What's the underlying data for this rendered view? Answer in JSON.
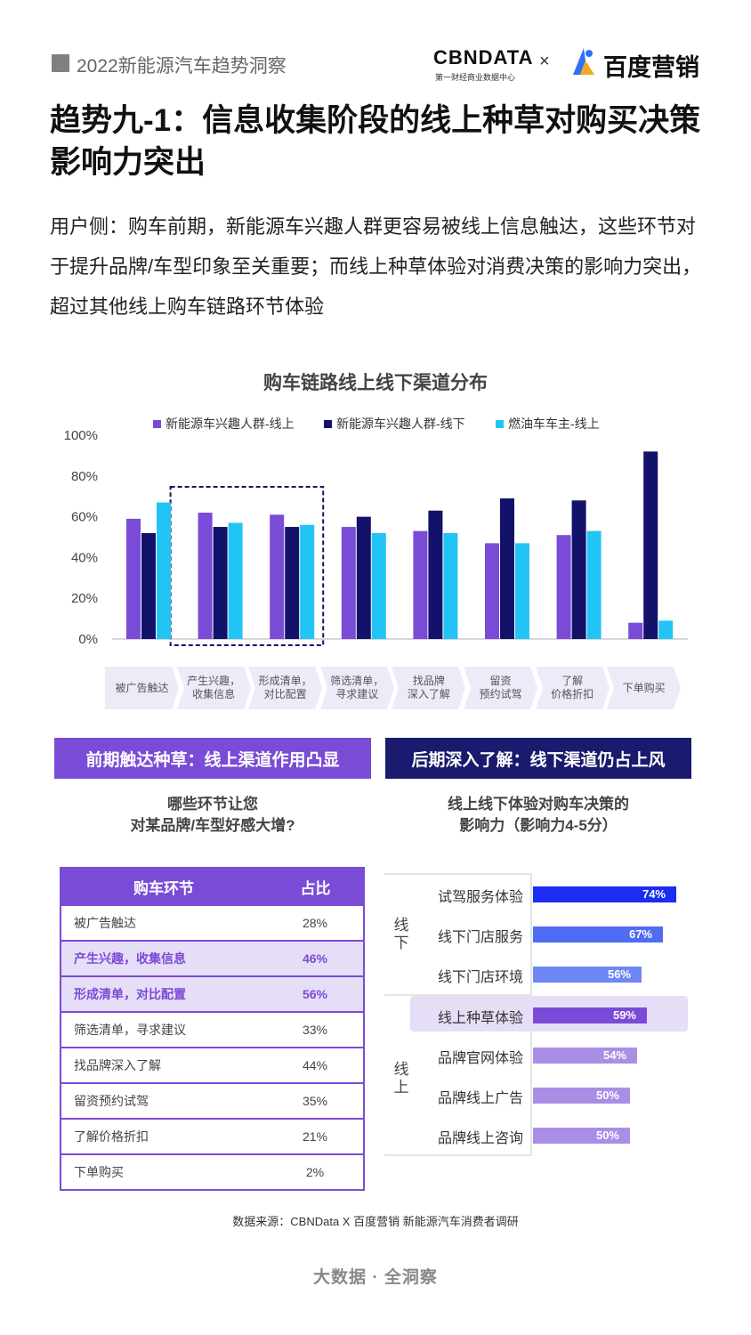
{
  "header": {
    "series_title": "2022新能源汽车趋势洞察",
    "cbn_logo": "CBNDATA",
    "cbn_sub": "第一财经商业数据中心",
    "times": "×",
    "baidu_logo": "百度营销"
  },
  "title": "趋势九-1：信息收集阶段的线上种草对购买决策影响力突出",
  "description": "用户侧：购车前期，新能源车兴趣人群更容易被线上信息触达，这些环节对于提升品牌/车型印象至关重要；而线上种草体验对消费决策的影响力突出，超过其他线上购车链路环节体验",
  "colors": {
    "purple": "#7a4bd6",
    "navy": "#12126b",
    "cyan": "#22c4f5",
    "highlight": "#e6def6",
    "stage_bg": "#eeeaf7"
  },
  "chart_data": [
    {
      "type": "bar",
      "title": "购车链路线上线下渠道分布",
      "categories": [
        "被广告触达",
        "产生兴趣，收集信息",
        "形成清单，对比配置",
        "筛选清单，寻求建议",
        "找品牌深入了解",
        "留资预约试驾",
        "了解价格折扣",
        "下单购买"
      ],
      "category_labels": [
        "被广告触达",
        "产生兴趣，\n收集信息",
        "形成清单，\n对比配置",
        "筛选清单，\n寻求建议",
        "找品牌\n深入了解",
        "留资\n预约试驾",
        "了解\n价格折扣",
        "下单购买"
      ],
      "series": [
        {
          "name": "新能源车兴趣人群-线上",
          "color": "#7a4bd6",
          "values": [
            59,
            62,
            61,
            55,
            53,
            47,
            51,
            8
          ]
        },
        {
          "name": "新能源车兴趣人群-线下",
          "color": "#12126b",
          "values": [
            52,
            55,
            55,
            60,
            63,
            69,
            68,
            92
          ]
        },
        {
          "name": "燃油车车主-线上",
          "color": "#22c4f5",
          "values": [
            67,
            57,
            56,
            52,
            52,
            47,
            53,
            9
          ]
        }
      ],
      "ylim": [
        0,
        100
      ],
      "yticks": [
        "0%",
        "20%",
        "40%",
        "60%",
        "80%",
        "100%"
      ],
      "highlighted_categories": [
        "产生兴趣，收集信息",
        "形成清单，对比配置"
      ],
      "legend_position": "top"
    },
    {
      "type": "table",
      "title": "哪些环节让您\n对某品牌/车型好感大增?",
      "columns": [
        "购车环节",
        "占比"
      ],
      "rows": [
        {
          "stage": "被广告触达",
          "share": "28%",
          "highlight": false
        },
        {
          "stage": "产生兴趣，收集信息",
          "share": "46%",
          "highlight": true
        },
        {
          "stage": "形成清单，对比配置",
          "share": "56%",
          "highlight": true
        },
        {
          "stage": "筛选清单，寻求建议",
          "share": "33%",
          "highlight": false
        },
        {
          "stage": "找品牌深入了解",
          "share": "44%",
          "highlight": false
        },
        {
          "stage": "留资预约试驾",
          "share": "35%",
          "highlight": false
        },
        {
          "stage": "了解价格折扣",
          "share": "21%",
          "highlight": false
        },
        {
          "stage": "下单购买",
          "share": "2%",
          "highlight": false
        }
      ]
    },
    {
      "type": "bar",
      "orientation": "horizontal",
      "title": "线上线下体验对购车决策的\n影响力（影响力4-5分）",
      "groups": [
        {
          "name": "线下",
          "items": [
            {
              "label": "试驾服务体验",
              "value": 74,
              "text": "74%",
              "color": "#1d2cf0"
            },
            {
              "label": "线下门店服务",
              "value": 67,
              "text": "67%",
              "color": "#4f6cf2"
            },
            {
              "label": "线下门店环境",
              "value": 56,
              "text": "56%",
              "color": "#6f87f5"
            }
          ]
        },
        {
          "name": "线上",
          "items": [
            {
              "label": "线上种草体验",
              "value": 59,
              "text": "59%",
              "color": "#7a4bd6",
              "highlight": true
            },
            {
              "label": "品牌官网体验",
              "value": 54,
              "text": "54%",
              "color": "#aa8ee6"
            },
            {
              "label": "品牌线上广告",
              "value": 50,
              "text": "50%",
              "color": "#aa8ee6"
            },
            {
              "label": "品牌线上咨询",
              "value": 50,
              "text": "50%",
              "color": "#aa8ee6"
            }
          ]
        }
      ]
    }
  ],
  "banners": {
    "left": "前期触达种草：线上渠道作用凸显",
    "right": "后期深入了解：线下渠道仍占上风"
  },
  "source": "数据来源：CBNData X 百度营销 新能源汽车消费者调研",
  "footer": "大数据 · 全洞察"
}
